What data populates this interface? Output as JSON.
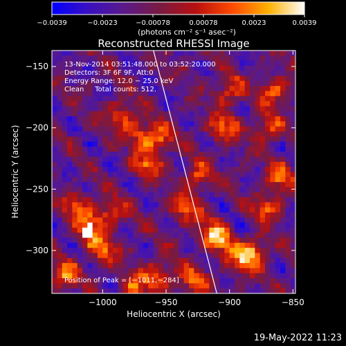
{
  "chart_data": {
    "type": "heatmap",
    "title": "Reconstructed RHESSI Image",
    "xlabel": "Heliocentric X (arcsec)",
    "ylabel": "Heliocentric Y (arcsec)",
    "xlim": [
      -1040,
      -848
    ],
    "ylim": [
      -335,
      -137
    ],
    "x_ticks": [
      -1000,
      -950,
      -900,
      -850
    ],
    "y_ticks": [
      -150,
      -200,
      -250,
      -300
    ],
    "x_tick_labels": [
      "−1000",
      "−950",
      "−900",
      "−850"
    ],
    "y_tick_labels": [
      "−150",
      "−200",
      "−250",
      "−300"
    ],
    "colorbar": {
      "min": -0.0039,
      "max": 0.0039,
      "tick_labels": [
        "−0.0039",
        "−0.0023",
        "−0.00078",
        "0.00078",
        "0.0023",
        "0.0039"
      ],
      "stops": [
        "#0000ff",
        "#3a10c0",
        "#5a1a8a",
        "#7a1a40",
        "#b81010",
        "#ff4a00",
        "#ffb000",
        "#ffffff"
      ]
    },
    "units_label": "(photons cm⁻² s⁻¹ asec⁻²)",
    "annotations": [
      "13-Nov-2014 03:51:48.000 to 03:52:20.000",
      "Detectors: 3F 6F 9F, Att:0",
      "Energy Range: 12.0 − 25.0 keV",
      "Clean     Total counts: 512."
    ],
    "peak_label": "Position of Peak = [−1011,−284]",
    "peak": [
      -1011,
      -284
    ],
    "limb_line": [
      [
        -960,
        -137
      ],
      [
        -910,
        -335
      ]
    ],
    "bright_spots": [
      [
        -1011,
        -284
      ],
      [
        -1020,
        -265
      ],
      [
        -995,
        -270
      ],
      [
        -1000,
        -300
      ],
      [
        -970,
        -205
      ],
      [
        -955,
        -210
      ],
      [
        -965,
        -230
      ],
      [
        -985,
        -190
      ],
      [
        -915,
        -285
      ],
      [
        -905,
        -295
      ],
      [
        -890,
        -310
      ],
      [
        -880,
        -300
      ],
      [
        -870,
        -265
      ],
      [
        -860,
        -240
      ],
      [
        -870,
        -200
      ],
      [
        -865,
        -170
      ],
      [
        -900,
        -170
      ],
      [
        -905,
        -200
      ],
      [
        -925,
        -240
      ],
      [
        -935,
        -265
      ],
      [
        -955,
        -320
      ],
      [
        -930,
        -325
      ],
      [
        -975,
        -330
      ],
      [
        -1030,
        -320
      ]
    ]
  },
  "footer": {
    "timestamp": "19-May-2022 11:23"
  }
}
